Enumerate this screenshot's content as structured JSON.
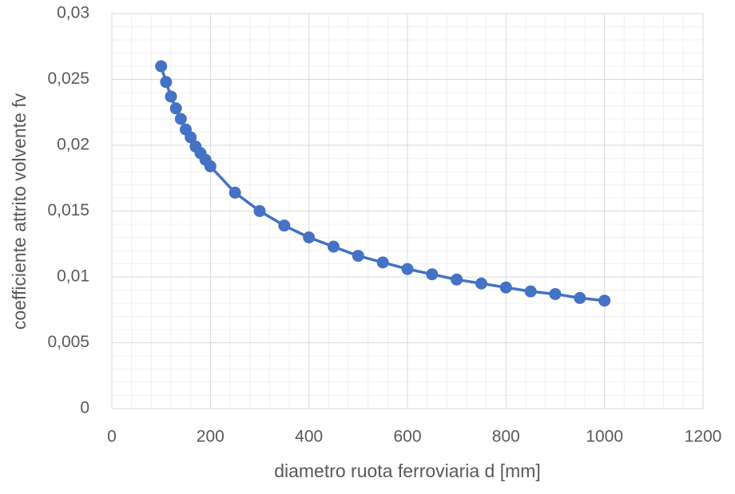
{
  "chart_data": {
    "type": "line",
    "x_label": "diametro ruota ferroviaria d [mm]",
    "y_label": "coefficiente attrito volvente fv",
    "x": [
      100,
      110,
      120,
      130,
      140,
      150,
      160,
      170,
      180,
      190,
      200,
      250,
      300,
      350,
      400,
      450,
      500,
      550,
      600,
      650,
      700,
      750,
      800,
      850,
      900,
      950,
      1000
    ],
    "series": [
      {
        "color": "#4472c4",
        "values": [
          0.026,
          0.0248,
          0.0237,
          0.0228,
          0.022,
          0.0212,
          0.0206,
          0.0199,
          0.0194,
          0.0189,
          0.0184,
          0.0164,
          0.015,
          0.0139,
          0.013,
          0.0123,
          0.0116,
          0.0111,
          0.0106,
          0.0102,
          0.0098,
          0.0095,
          0.0092,
          0.0089,
          0.0087,
          0.0084,
          0.0082
        ]
      }
    ],
    "xlim": [
      0,
      1200
    ],
    "xticks": [
      0,
      200,
      400,
      600,
      800,
      1000,
      1200
    ],
    "ylim": [
      0,
      0.03
    ],
    "yticks": [
      0,
      {
        "value": 0.005,
        "label": "0,005"
      },
      {
        "value": 0.01,
        "label": "0,01"
      },
      {
        "value": 0.015,
        "label": "0,015"
      },
      {
        "value": 0.02,
        "label": "0,02"
      },
      {
        "value": 0.025,
        "label": "0,025"
      },
      {
        "value": 0.03,
        "label": "0,03"
      }
    ],
    "grid": true,
    "minor_grid": true,
    "markers": true
  }
}
